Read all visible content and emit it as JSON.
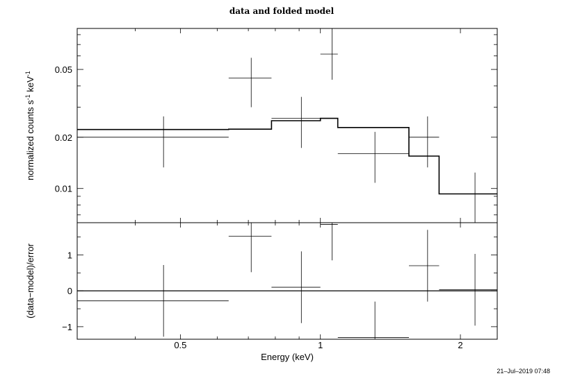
{
  "chart_data": [
    {
      "type": "scatter",
      "title": "data and folded model",
      "xlabel": "Energy (keV)",
      "ylabel": "normalized counts s",
      "ylabel_sup1": "-1",
      "ylabel_mid": " keV",
      "ylabel_sup2": "-1",
      "x_scale": "log",
      "y_scale": "log",
      "xlim": [
        0.3,
        2.4
      ],
      "ylim": [
        0.0063,
        0.087
      ],
      "x_ticks": [
        0.5,
        1,
        2
      ],
      "x_tick_labels": [
        "0.5",
        "1",
        "2"
      ],
      "y_ticks": [
        0.01,
        0.02,
        0.05
      ],
      "y_tick_labels": [
        "0.01",
        "0.02",
        "0.05"
      ],
      "data_points": [
        {
          "x": 0.46,
          "xlo": 0.3,
          "xhi": 0.635,
          "y": 0.02,
          "ylo": 0.0133,
          "yhi": 0.0265
        },
        {
          "x": 0.71,
          "xlo": 0.635,
          "xhi": 0.785,
          "y": 0.0445,
          "ylo": 0.03,
          "yhi": 0.0585
        },
        {
          "x": 0.91,
          "xlo": 0.785,
          "xhi": 1.0,
          "y": 0.0258,
          "ylo": 0.0173,
          "yhi": 0.0345
        },
        {
          "x": 1.06,
          "xlo": 1.0,
          "xhi": 1.09,
          "y": 0.0615,
          "ylo": 0.0435,
          "yhi": 0.087
        },
        {
          "x": 1.31,
          "xlo": 1.09,
          "xhi": 1.55,
          "y": 0.016,
          "ylo": 0.0108,
          "yhi": 0.0215
        },
        {
          "x": 1.7,
          "xlo": 1.55,
          "xhi": 1.8,
          "y": 0.02,
          "ylo": 0.0133,
          "yhi": 0.0265
        },
        {
          "x": 2.15,
          "xlo": 1.8,
          "xhi": 2.4,
          "y": 0.0093,
          "ylo": 0.0063,
          "yhi": 0.0124
        }
      ],
      "model_steps": [
        {
          "xlo": 0.3,
          "xhi": 0.635,
          "y": 0.0222
        },
        {
          "xlo": 0.635,
          "xhi": 0.785,
          "y": 0.0223
        },
        {
          "xlo": 0.785,
          "xhi": 1.0,
          "y": 0.025
        },
        {
          "xlo": 1.0,
          "xhi": 1.09,
          "y": 0.0258
        },
        {
          "xlo": 1.09,
          "xhi": 1.55,
          "y": 0.0228
        },
        {
          "xlo": 1.55,
          "xhi": 1.8,
          "y": 0.0155
        },
        {
          "xlo": 1.8,
          "xhi": 2.4,
          "y": 0.0093
        }
      ]
    },
    {
      "type": "scatter",
      "xlabel": "Energy (keV)",
      "ylabel": "(data−model)/error",
      "x_scale": "log",
      "y_scale": "linear",
      "xlim": [
        0.3,
        2.4
      ],
      "ylim": [
        -1.35,
        1.9
      ],
      "y_ticks": [
        -1,
        0,
        1
      ],
      "y_tick_labels": [
        "−1",
        "0",
        "1"
      ],
      "reference_line": 0,
      "data_points": [
        {
          "x": 0.46,
          "xlo": 0.3,
          "xhi": 0.635,
          "y": -0.28,
          "ylo": -1.28,
          "yhi": 0.72
        },
        {
          "x": 0.71,
          "xlo": 0.635,
          "xhi": 0.785,
          "y": 1.52,
          "ylo": 0.52,
          "yhi": 1.9
        },
        {
          "x": 0.91,
          "xlo": 0.785,
          "xhi": 1.0,
          "y": 0.1,
          "ylo": -0.9,
          "yhi": 1.1
        },
        {
          "x": 1.06,
          "xlo": 1.0,
          "xhi": 1.09,
          "y": 1.85,
          "ylo": 0.85,
          "yhi": 1.9
        },
        {
          "x": 1.31,
          "xlo": 1.09,
          "xhi": 1.55,
          "y": -1.3,
          "ylo": -1.35,
          "yhi": -0.3
        },
        {
          "x": 1.7,
          "xlo": 1.55,
          "xhi": 1.8,
          "y": 0.7,
          "ylo": -0.3,
          "yhi": 1.7
        },
        {
          "x": 2.15,
          "xlo": 1.8,
          "xhi": 2.4,
          "y": 0.03,
          "ylo": -0.97,
          "yhi": 1.03
        }
      ]
    }
  ],
  "timestamp": "21–Jul–2019 07:48"
}
